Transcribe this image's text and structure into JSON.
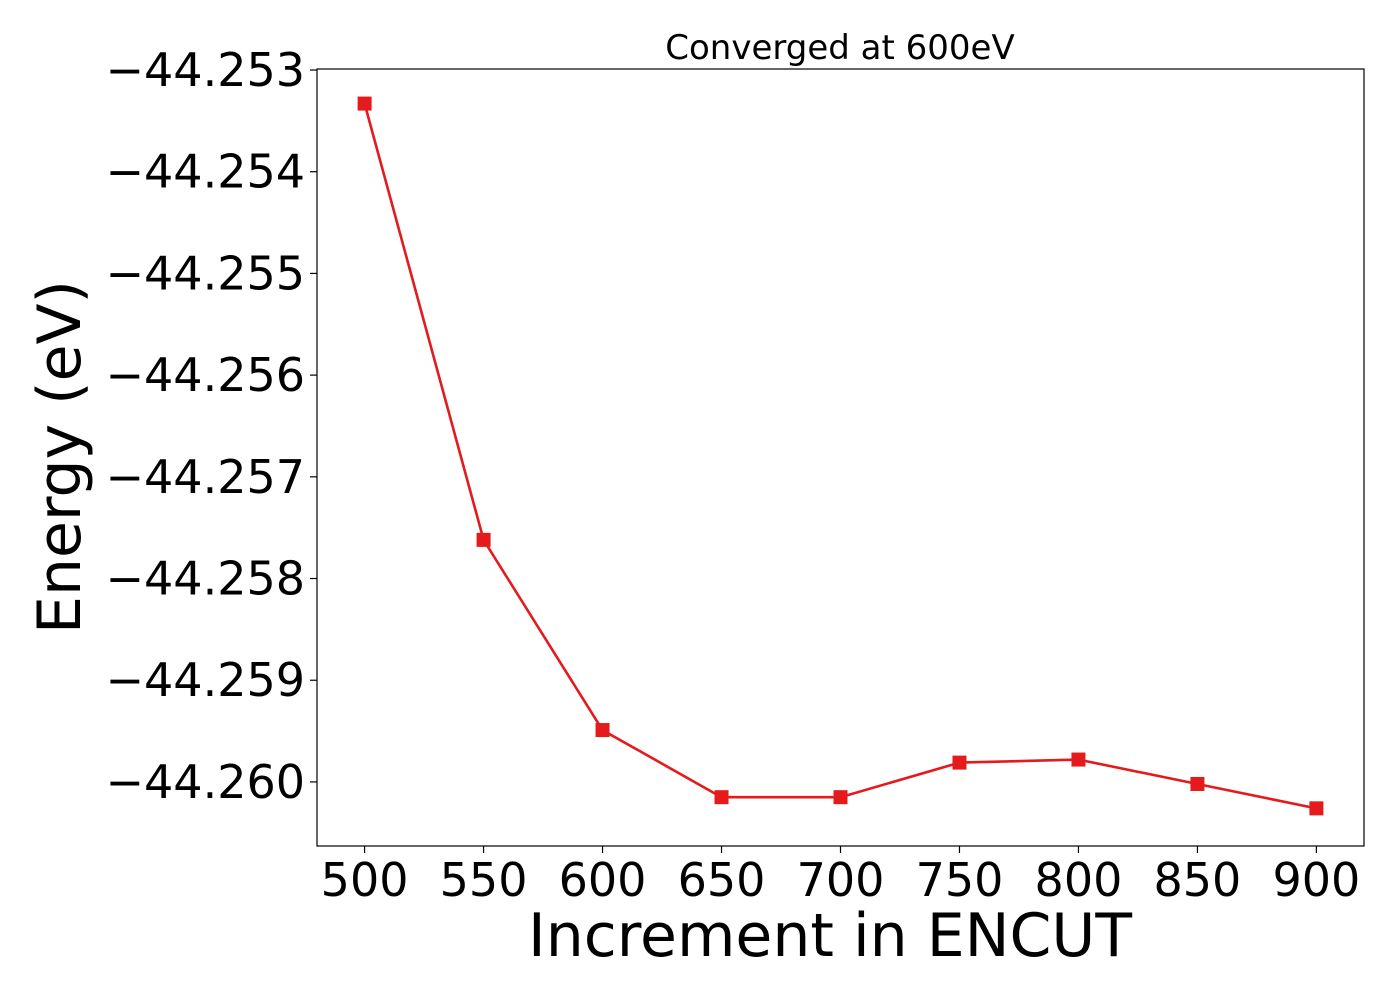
{
  "chart_data": {
    "type": "line",
    "title": "Converged at 600eV",
    "xlabel": "Increment in ENCUT",
    "ylabel": "Energy (eV)",
    "x": [
      500,
      550,
      600,
      650,
      700,
      750,
      800,
      850,
      900
    ],
    "series": [
      {
        "values": [
          -44.25333,
          -44.25762,
          -44.25949,
          -44.26015,
          -44.26015,
          -44.25981,
          -44.25978,
          -44.26002,
          -44.26026
        ],
        "color": "#e41a1c",
        "marker": "square"
      }
    ],
    "xticks": [
      500,
      550,
      600,
      650,
      700,
      750,
      800,
      850,
      900
    ],
    "yticks": [
      -44.253,
      -44.254,
      -44.255,
      -44.256,
      -44.257,
      -44.258,
      -44.259,
      -44.26
    ],
    "ytick_labels": [
      "−44.253",
      "−44.254",
      "−44.255",
      "−44.256",
      "−44.257",
      "−44.258",
      "−44.259",
      "−44.260"
    ],
    "xlim": [
      480,
      920
    ],
    "ylim": [
      -44.26063,
      -44.25299
    ],
    "grid": false,
    "legend": "none"
  }
}
